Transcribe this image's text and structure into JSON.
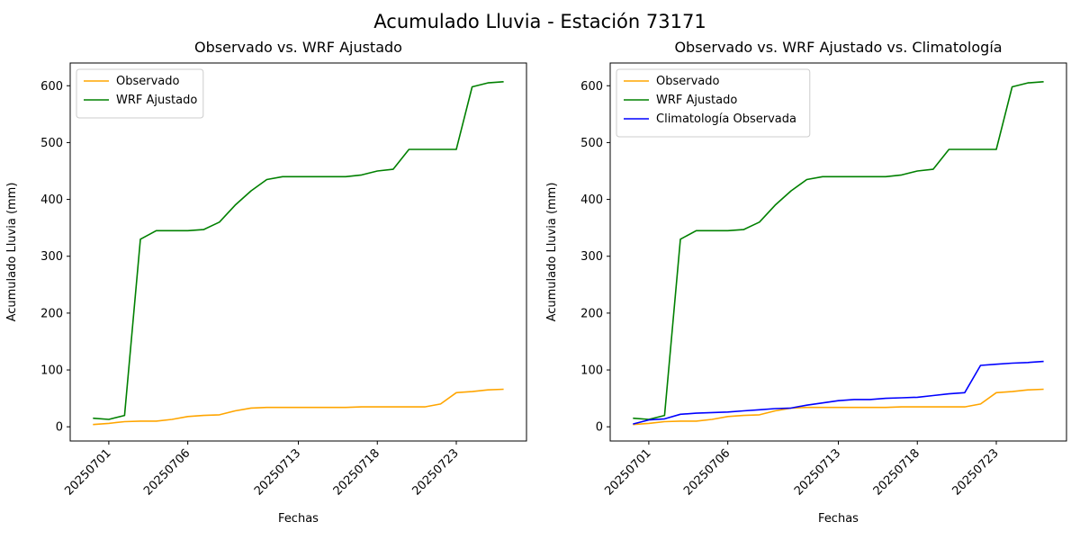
{
  "figure": {
    "suptitle": "Acumulado Lluvia - Estación 73171"
  },
  "chart_data": [
    {
      "type": "line",
      "title": "Observado vs. WRF Ajustado",
      "xlabel": "Fechas",
      "ylabel": "Acumulado Lluvia (mm)",
      "x": [
        "20250630",
        "20250701",
        "20250702",
        "20250703",
        "20250704",
        "20250705",
        "20250706",
        "20250707",
        "20250708",
        "20250709",
        "20250710",
        "20250711",
        "20250712",
        "20250713",
        "20250714",
        "20250715",
        "20250716",
        "20250717",
        "20250718",
        "20250719",
        "20250720",
        "20250721",
        "20250722",
        "20250723",
        "20250724",
        "20250725",
        "20250726"
      ],
      "xticks": [
        "20250701",
        "20250706",
        "20250713",
        "20250718",
        "20250723"
      ],
      "yticks": [
        0,
        100,
        200,
        300,
        400,
        500,
        600
      ],
      "ylim": [
        -25,
        640
      ],
      "grid": false,
      "legend_position": "upper-left",
      "series": [
        {
          "name": "Observado",
          "color": "#ffa500",
          "values": [
            4,
            6,
            9,
            10,
            10,
            13,
            18,
            20,
            21,
            28,
            33,
            34,
            34,
            34,
            34,
            34,
            34,
            35,
            35,
            35,
            35,
            35,
            40,
            60,
            62,
            65,
            66
          ]
        },
        {
          "name": "WRF Ajustado",
          "color": "#008000",
          "values": [
            15,
            13,
            20,
            330,
            345,
            345,
            345,
            347,
            360,
            390,
            415,
            435,
            440,
            440,
            440,
            440,
            440,
            443,
            450,
            453,
            488,
            488,
            488,
            488,
            598,
            605,
            607
          ]
        }
      ]
    },
    {
      "type": "line",
      "title": "Observado vs. WRF Ajustado vs. Climatología",
      "xlabel": "Fechas",
      "ylabel": "Acumulado Lluvia (mm)",
      "x": [
        "20250630",
        "20250701",
        "20250702",
        "20250703",
        "20250704",
        "20250705",
        "20250706",
        "20250707",
        "20250708",
        "20250709",
        "20250710",
        "20250711",
        "20250712",
        "20250713",
        "20250714",
        "20250715",
        "20250716",
        "20250717",
        "20250718",
        "20250719",
        "20250720",
        "20250721",
        "20250722",
        "20250723",
        "20250724",
        "20250725",
        "20250726"
      ],
      "xticks": [
        "20250701",
        "20250706",
        "20250713",
        "20250718",
        "20250723"
      ],
      "yticks": [
        0,
        100,
        200,
        300,
        400,
        500,
        600
      ],
      "ylim": [
        -25,
        640
      ],
      "grid": false,
      "legend_position": "upper-left",
      "series": [
        {
          "name": "Observado",
          "color": "#ffa500",
          "values": [
            4,
            6,
            9,
            10,
            10,
            13,
            18,
            20,
            21,
            28,
            33,
            34,
            34,
            34,
            34,
            34,
            34,
            35,
            35,
            35,
            35,
            35,
            40,
            60,
            62,
            65,
            66
          ]
        },
        {
          "name": "WRF Ajustado",
          "color": "#008000",
          "values": [
            15,
            13,
            20,
            330,
            345,
            345,
            345,
            347,
            360,
            390,
            415,
            435,
            440,
            440,
            440,
            440,
            440,
            443,
            450,
            453,
            488,
            488,
            488,
            488,
            598,
            605,
            607
          ]
        },
        {
          "name": "Climatología Observada",
          "color": "#0000ff",
          "values": [
            5,
            12,
            14,
            22,
            24,
            25,
            26,
            28,
            30,
            32,
            33,
            38,
            42,
            46,
            48,
            48,
            50,
            51,
            52,
            55,
            58,
            60,
            108,
            110,
            112,
            113,
            115
          ]
        }
      ]
    }
  ]
}
